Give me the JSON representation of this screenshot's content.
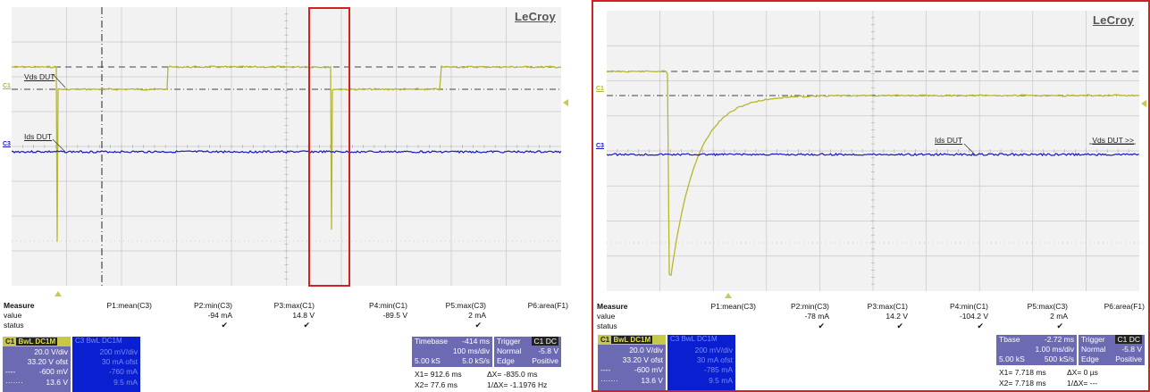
{
  "brand": "LeCroy",
  "colors": {
    "yellow": "#b7b72a",
    "blue": "#1616c8",
    "grid_bg": "#f2f2f2",
    "highlight": "#d42020",
    "panel": "#6d6ab4"
  },
  "left": {
    "channel_markers": {
      "c1": "C1",
      "c3": "C3"
    },
    "trace_labels": {
      "vds": "Vds DUT",
      "ids": "Ids DUT"
    },
    "measure": {
      "title": "Measure",
      "row_value": "value",
      "row_status": "status",
      "params": [
        {
          "name": "P1:mean(C3)",
          "value": "",
          "check": ""
        },
        {
          "name": "P2:min(C3)",
          "value": "-94 mA",
          "check": "✔"
        },
        {
          "name": "P3:max(C1)",
          "value": "14.8 V",
          "check": "✔"
        },
        {
          "name": "P4:min(C1)",
          "value": "-89.5 V",
          "check": ""
        },
        {
          "name": "P5:max(C3)",
          "value": "2 mA",
          "check": "✔"
        },
        {
          "name": "P6:area(F1)",
          "value": "",
          "check": ""
        }
      ]
    },
    "c1_box": {
      "tag": "C1",
      "badge": "BwL DC1M",
      "vdiv": "20.0 V/div",
      "ofst": "33.20 V ofst",
      "l1": "-600 mV",
      "l2": "13.6 V"
    },
    "c3_box": {
      "tag": "C3",
      "badge": "BwL DC1M",
      "vdiv": "200 mV/div",
      "ofst": "30 mA ofst",
      "l1": "-760 mA",
      "l2": "9.5 mA"
    },
    "timebase": {
      "label": "Timebase",
      "delay": "-414 ms",
      "tdiv": "100 ms/div",
      "samples": "5.00 kS",
      "rate": "5.0 kS/s"
    },
    "trigger": {
      "label": "Trigger",
      "badge": "C1 DC",
      "mode": "Normal",
      "level": "-5.8 V",
      "type": "Edge",
      "slope": "Positive"
    },
    "cursors": {
      "x1": "X1=  912.6 ms",
      "dx": "ΔX=   -835.0 ms",
      "x2": "X2=   77.6 ms",
      "inv": "1/ΔX=  -1.1976 Hz"
    }
  },
  "right": {
    "channel_markers": {
      "c1": "C1",
      "c3": "C3"
    },
    "trace_labels": {
      "ids": "Ids DUT",
      "vds": "Vds DUT >>"
    },
    "measure": {
      "title": "Measure",
      "row_value": "value",
      "row_status": "status",
      "params": [
        {
          "name": "P1:mean(C3)",
          "value": "",
          "check": ""
        },
        {
          "name": "P2:min(C3)",
          "value": "-78 mA",
          "check": "✔"
        },
        {
          "name": "P3:max(C1)",
          "value": "14.2 V",
          "check": "✔"
        },
        {
          "name": "P4:min(C1)",
          "value": "-104.2 V",
          "check": "✔"
        },
        {
          "name": "P5:max(C3)",
          "value": "2 mA",
          "check": "✔"
        },
        {
          "name": "P6:area(F1)",
          "value": "",
          "check": ""
        }
      ]
    },
    "c1_box": {
      "tag": "C1",
      "badge": "BwL DC1M",
      "vdiv": "20.0 V/div",
      "ofst": "33.20 V ofst",
      "l1": "-600 mV",
      "l2": "13.6 V"
    },
    "c3_box": {
      "tag": "C3",
      "badge": "BwL DC1M",
      "vdiv": "200 mV/div",
      "ofst": "30 mA ofst",
      "l1": "-785 mA",
      "l2": "9.5 mA"
    },
    "timebase": {
      "label": "Tbase",
      "delay": "-2.72 ms",
      "tdiv": "1.00 ms/div",
      "samples": "5.00 kS",
      "rate": "500 kS/s"
    },
    "trigger": {
      "label": "Trigger",
      "badge": "C1 DC",
      "mode": "Normal",
      "level": "-5.8 V",
      "type": "Edge",
      "slope": "Positive"
    },
    "cursors": {
      "x1": "X1=  7.718 ms",
      "dx": "ΔX=  0 µs",
      "x2": "X2=  7.718 ms",
      "inv": "1/ΔX=    ---"
    }
  }
}
